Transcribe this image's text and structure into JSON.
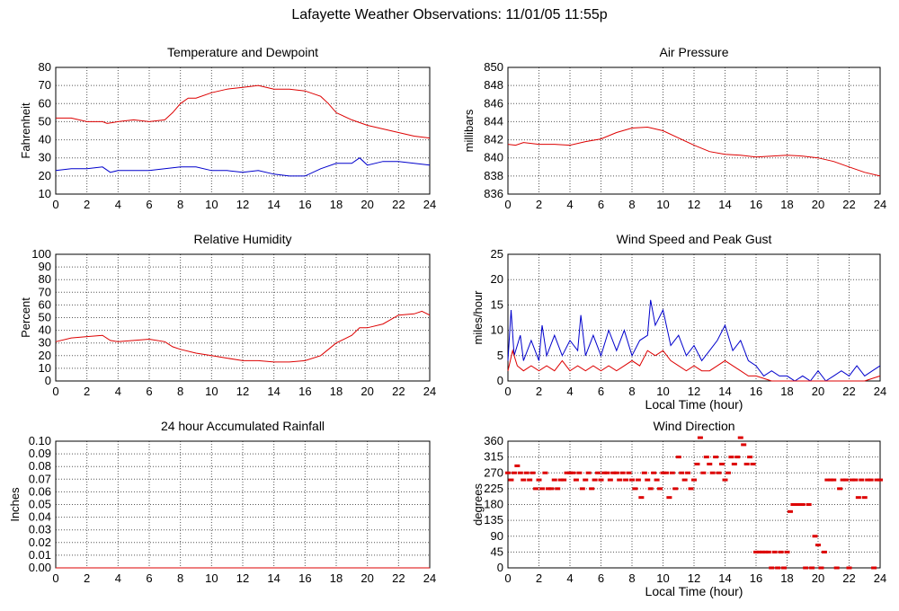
{
  "page": {
    "title": "Lafayette Weather Observations: 11/01/05 11:55p"
  },
  "colors": {
    "red": "#dd0000",
    "blue": "#0000cc",
    "grid": "#555555",
    "axis": "#000000",
    "background": "#ffffff"
  },
  "chart_data": [
    {
      "id": "temp",
      "type": "line",
      "title": "Temperature and Dewpoint",
      "xlabel": "",
      "ylabel": "Fahrenheit",
      "xlim": [
        0,
        24
      ],
      "ylim": [
        10,
        80
      ],
      "xticks": [
        0,
        2,
        4,
        6,
        8,
        10,
        12,
        14,
        16,
        18,
        20,
        22,
        24
      ],
      "yticks": [
        10,
        20,
        30,
        40,
        50,
        60,
        70,
        80
      ],
      "grid": true,
      "series": [
        {
          "color": "#dd0000",
          "x": [
            0,
            1,
            2,
            3,
            3.3,
            4,
            5,
            6,
            7,
            7.5,
            8,
            8.5,
            9,
            10,
            11,
            12,
            13,
            14,
            15,
            16,
            17,
            17.5,
            18,
            19,
            20,
            21,
            22,
            23,
            24
          ],
          "y": [
            52,
            52,
            50,
            50,
            49,
            50,
            51,
            50,
            51,
            55,
            60,
            63,
            63,
            66,
            68,
            69,
            70,
            68,
            68,
            67,
            64,
            60,
            55,
            51,
            48,
            46,
            44,
            42,
            41
          ]
        },
        {
          "color": "#0000cc",
          "x": [
            0,
            1,
            2,
            3,
            3.5,
            4,
            5,
            6,
            7,
            8,
            9,
            10,
            11,
            12,
            13,
            14,
            15,
            16,
            17,
            18,
            19,
            19.5,
            20,
            21,
            22,
            23,
            24
          ],
          "y": [
            23,
            24,
            24,
            25,
            22,
            23,
            23,
            23,
            24,
            25,
            25,
            23,
            23,
            22,
            23,
            21,
            20,
            20,
            24,
            27,
            27,
            30,
            26,
            28,
            28,
            27,
            26
          ]
        }
      ]
    },
    {
      "id": "pressure",
      "type": "line",
      "title": "Air Pressure",
      "xlabel": "",
      "ylabel": "millibars",
      "xlim": [
        0,
        24
      ],
      "ylim": [
        836,
        850
      ],
      "xticks": [
        0,
        2,
        4,
        6,
        8,
        10,
        12,
        14,
        16,
        18,
        20,
        22,
        24
      ],
      "yticks": [
        836,
        838,
        840,
        842,
        844,
        846,
        848,
        850
      ],
      "grid": true,
      "series": [
        {
          "color": "#dd0000",
          "x": [
            0,
            0.5,
            1,
            2,
            3,
            4,
            5,
            6,
            7,
            8,
            9,
            10,
            11,
            12,
            13,
            14,
            15,
            16,
            17,
            18,
            19,
            20,
            21,
            22,
            23,
            24
          ],
          "y": [
            841.5,
            841.4,
            841.7,
            841.5,
            841.5,
            841.4,
            841.8,
            842.1,
            842.8,
            843.3,
            843.4,
            843,
            842.2,
            841.4,
            840.7,
            840.4,
            840.3,
            840.1,
            840.2,
            840.3,
            840.2,
            840,
            839.6,
            839,
            838.4,
            838
          ]
        }
      ]
    },
    {
      "id": "rh",
      "type": "line",
      "title": "Relative Humidity",
      "xlabel": "",
      "ylabel": "Percent",
      "xlim": [
        0,
        24
      ],
      "ylim": [
        0,
        100
      ],
      "xticks": [
        0,
        2,
        4,
        6,
        8,
        10,
        12,
        14,
        16,
        18,
        20,
        22,
        24
      ],
      "yticks": [
        0,
        10,
        20,
        30,
        40,
        50,
        60,
        70,
        80,
        90,
        100
      ],
      "grid": true,
      "series": [
        {
          "color": "#dd0000",
          "x": [
            0,
            1,
            2,
            3,
            3.5,
            4,
            5,
            6,
            7,
            7.5,
            8,
            9,
            10,
            11,
            12,
            13,
            14,
            15,
            16,
            17,
            17.5,
            18,
            19,
            19.5,
            20,
            21,
            22,
            23,
            23.5,
            24
          ],
          "y": [
            31,
            34,
            35,
            36,
            32,
            31,
            32,
            33,
            31,
            27,
            25,
            22,
            20,
            18,
            16,
            16,
            15,
            15,
            16,
            20,
            25,
            30,
            36,
            42,
            42,
            45,
            52,
            53,
            55,
            52
          ]
        }
      ]
    },
    {
      "id": "wind",
      "type": "line",
      "title": "Wind Speed and Peak Gust",
      "xlabel": "Local Time (hour)",
      "ylabel": "miles/hour",
      "xlim": [
        0,
        24
      ],
      "ylim": [
        0,
        25
      ],
      "xticks": [
        0,
        2,
        4,
        6,
        8,
        10,
        12,
        14,
        16,
        18,
        20,
        22,
        24
      ],
      "yticks": [
        0,
        5,
        10,
        15,
        20,
        25
      ],
      "grid": true,
      "series": [
        {
          "color": "#0000cc",
          "x": [
            0,
            0.2,
            0.4,
            0.8,
            1,
            1.5,
            2,
            2.2,
            2.5,
            3,
            3.5,
            4,
            4.5,
            4.7,
            5,
            5.5,
            6,
            6.5,
            7,
            7.5,
            8,
            8.5,
            9,
            9.2,
            9.5,
            10,
            10.5,
            11,
            11.5,
            12,
            12.5,
            13,
            13.5,
            14,
            14.5,
            15,
            15.5,
            16,
            16.5,
            17,
            17.5,
            18,
            18.5,
            19,
            19.5,
            20,
            20.5,
            21,
            21.5,
            22,
            22.5,
            23,
            23.5,
            24
          ],
          "y": [
            4,
            14,
            5,
            9,
            4,
            8,
            4,
            11,
            5,
            9,
            5,
            8,
            6,
            13,
            5,
            9,
            5,
            10,
            6,
            10,
            5,
            8,
            9,
            16,
            11,
            14,
            7,
            9,
            5,
            7,
            4,
            6,
            8,
            11,
            6,
            8,
            4,
            3,
            1,
            2,
            1,
            1,
            0,
            1,
            0,
            2,
            0,
            1,
            2,
            1,
            3,
            1,
            2,
            3
          ]
        },
        {
          "color": "#dd0000",
          "x": [
            0,
            0.3,
            0.6,
            1,
            1.5,
            2,
            2.5,
            3,
            3.5,
            4,
            4.5,
            5,
            5.5,
            6,
            6.5,
            7,
            7.5,
            8,
            8.5,
            9,
            9.5,
            10,
            10.5,
            11,
            11.5,
            12,
            12.5,
            13,
            13.5,
            14,
            14.5,
            15,
            15.5,
            16,
            17,
            18,
            19,
            20,
            21,
            22,
            23,
            24
          ],
          "y": [
            2,
            6,
            3,
            2,
            3,
            2,
            3,
            2,
            4,
            2,
            3,
            2,
            3,
            2,
            3,
            2,
            3,
            4,
            3,
            6,
            5,
            6,
            4,
            3,
            2,
            3,
            2,
            2,
            3,
            4,
            3,
            2,
            1,
            1,
            0,
            0,
            0,
            0,
            0,
            0,
            0,
            1
          ]
        }
      ]
    },
    {
      "id": "rain",
      "type": "line",
      "title": "24 hour Accumulated Rainfall",
      "xlabel": "",
      "ylabel": "Inches",
      "xlim": [
        0,
        24
      ],
      "ylim": [
        0,
        0.1
      ],
      "xticks": [
        0,
        2,
        4,
        6,
        8,
        10,
        12,
        14,
        16,
        18,
        20,
        22,
        24
      ],
      "yticks": [
        "0.00",
        "0.01",
        "0.02",
        "0.03",
        "0.04",
        "0.05",
        "0.06",
        "0.07",
        "0.08",
        "0.09",
        "0.10"
      ],
      "grid": true,
      "series": [
        {
          "color": "#dd0000",
          "x": [
            0,
            24
          ],
          "y": [
            0,
            0
          ]
        }
      ]
    },
    {
      "id": "dir",
      "type": "scatter",
      "title": "Wind Direction",
      "xlabel": "Local Time (hour)",
      "ylabel": "degrees",
      "xlim": [
        0,
        24
      ],
      "ylim": [
        0,
        360
      ],
      "xticks": [
        0,
        2,
        4,
        6,
        8,
        10,
        12,
        14,
        16,
        18,
        20,
        22,
        24
      ],
      "yticks": [
        0,
        45,
        90,
        135,
        180,
        225,
        270,
        315,
        360
      ],
      "grid": true,
      "series": [
        {
          "color": "#dd0000",
          "x": [
            0,
            0.2,
            0.4,
            0.6,
            0.8,
            1,
            1.2,
            1.4,
            1.6,
            1.8,
            2,
            2.2,
            2.4,
            2.6,
            2.8,
            3,
            3.2,
            3.4,
            3.6,
            3.8,
            4,
            4.2,
            4.4,
            4.6,
            4.8,
            5,
            5.2,
            5.4,
            5.6,
            5.8,
            6,
            6.2,
            6.4,
            6.6,
            6.8,
            7,
            7.2,
            7.4,
            7.6,
            7.8,
            8,
            8.2,
            8.4,
            8.6,
            8.8,
            9,
            9.2,
            9.4,
            9.6,
            9.8,
            10,
            10.2,
            10.4,
            10.6,
            10.8,
            11,
            11.2,
            11.4,
            11.6,
            11.8,
            12,
            12.2,
            12.4,
            12.6,
            12.8,
            13,
            13.2,
            13.4,
            13.6,
            13.8,
            14,
            14.2,
            14.4,
            14.6,
            14.8,
            15,
            15.2,
            15.4,
            15.6,
            15.8,
            16,
            16.2,
            16.4,
            16.6,
            16.8,
            17,
            17.2,
            17.4,
            17.6,
            17.8,
            18,
            18.2,
            18.4,
            18.6,
            18.8,
            19,
            19.2,
            19.4,
            19.6,
            19.8,
            20,
            20.2,
            20.4,
            20.6,
            20.8,
            21,
            21.2,
            21.4,
            21.6,
            21.8,
            22,
            22.2,
            22.4,
            22.6,
            22.8,
            23,
            23.2,
            23.4,
            23.6,
            23.8,
            24
          ],
          "y": [
            270,
            250,
            270,
            290,
            270,
            250,
            270,
            250,
            270,
            225,
            250,
            225,
            270,
            225,
            225,
            250,
            225,
            250,
            250,
            270,
            270,
            270,
            250,
            270,
            225,
            250,
            270,
            225,
            250,
            270,
            250,
            270,
            270,
            250,
            270,
            270,
            250,
            270,
            250,
            270,
            250,
            225,
            250,
            200,
            270,
            250,
            225,
            270,
            250,
            225,
            270,
            270,
            200,
            270,
            225,
            315,
            270,
            250,
            270,
            225,
            250,
            295,
            370,
            270,
            315,
            295,
            270,
            315,
            270,
            295,
            250,
            270,
            315,
            295,
            315,
            370,
            350,
            295,
            315,
            295,
            45,
            45,
            45,
            45,
            45,
            0,
            45,
            0,
            45,
            0,
            45,
            160,
            180,
            180,
            180,
            180,
            0,
            180,
            0,
            90,
            65,
            0,
            45,
            250,
            250,
            250,
            0,
            225,
            250,
            250,
            0,
            250,
            250,
            200,
            250,
            200,
            250,
            250,
            0,
            250,
            250
          ]
        }
      ]
    }
  ]
}
